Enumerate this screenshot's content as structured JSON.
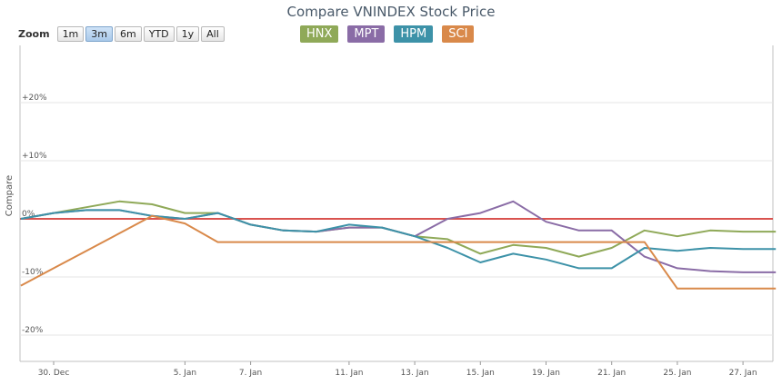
{
  "chart_data": {
    "type": "line",
    "title": "Compare VNINDEX Stock Price",
    "ylabel": "Compare",
    "ylim": [
      -25,
      30
    ],
    "y_ticks": [
      {
        "value": 20,
        "label": "+20%"
      },
      {
        "value": 10,
        "label": "+10%"
      },
      {
        "value": 0,
        "label": "0%"
      },
      {
        "value": -10,
        "label": "-10%"
      },
      {
        "value": -20,
        "label": "-20%"
      }
    ],
    "x_ticks": [
      {
        "idx": 0,
        "label": "30. Dec"
      },
      {
        "idx": 4,
        "label": "5. Jan"
      },
      {
        "idx": 6,
        "label": "7. Jan"
      },
      {
        "idx": 9,
        "label": "11. Jan"
      },
      {
        "idx": 11,
        "label": "13. Jan"
      },
      {
        "idx": 13,
        "label": "15. Jan"
      },
      {
        "idx": 15,
        "label": "19. Jan"
      },
      {
        "idx": 17,
        "label": "21. Jan"
      },
      {
        "idx": 19,
        "label": "25. Jan"
      },
      {
        "idx": 21,
        "label": "27. Jan"
      }
    ],
    "baseline": {
      "value": 0,
      "color": "#d9534f"
    },
    "series": [
      {
        "name": "HNX",
        "color": "#8fa958",
        "points": [
          [
            -1,
            0
          ],
          [
            0,
            1
          ],
          [
            1,
            2
          ],
          [
            2,
            3
          ],
          [
            3,
            2.5
          ],
          [
            4,
            1
          ],
          [
            5,
            1
          ],
          [
            6,
            -1
          ],
          [
            7,
            -2
          ],
          [
            8,
            -2.2
          ],
          [
            9,
            -1.5
          ],
          [
            10,
            -1.5
          ],
          [
            11,
            -3
          ],
          [
            12,
            -3.5
          ],
          [
            13,
            -6
          ],
          [
            14,
            -4.5
          ],
          [
            15,
            -5
          ],
          [
            16,
            -6.5
          ],
          [
            17,
            -5
          ],
          [
            18,
            -2
          ],
          [
            19,
            -3
          ],
          [
            20,
            -2
          ],
          [
            21,
            -2.2
          ],
          [
            22,
            -2.2
          ]
        ]
      },
      {
        "name": "MPT",
        "color": "#8a6ca6",
        "points": [
          [
            -1,
            0
          ],
          [
            0,
            1
          ],
          [
            1,
            1.5
          ],
          [
            2,
            1.5
          ],
          [
            3,
            0.5
          ],
          [
            4,
            0
          ],
          [
            5,
            1
          ],
          [
            6,
            -1
          ],
          [
            7,
            -2
          ],
          [
            8,
            -2.2
          ],
          [
            9,
            -1.5
          ],
          [
            10,
            -1.5
          ],
          [
            11,
            -3
          ],
          [
            12,
            0
          ],
          [
            13,
            1
          ],
          [
            14,
            3
          ],
          [
            15,
            -0.5
          ],
          [
            16,
            -2
          ],
          [
            17,
            -2
          ],
          [
            18,
            -6.5
          ],
          [
            19,
            -8.5
          ],
          [
            20,
            -9
          ],
          [
            21,
            -9.2
          ],
          [
            22,
            -9.2
          ]
        ]
      },
      {
        "name": "HPM",
        "color": "#3d92a8",
        "points": [
          [
            -1,
            0
          ],
          [
            0,
            1
          ],
          [
            1,
            1.5
          ],
          [
            2,
            1.5
          ],
          [
            3,
            0.5
          ],
          [
            4,
            0
          ],
          [
            5,
            1
          ],
          [
            6,
            -1
          ],
          [
            7,
            -2
          ],
          [
            8,
            -2.2
          ],
          [
            9,
            -1
          ],
          [
            10,
            -1.5
          ],
          [
            11,
            -3
          ],
          [
            12,
            -5
          ],
          [
            13,
            -7.5
          ],
          [
            14,
            -6
          ],
          [
            15,
            -7
          ],
          [
            16,
            -8.5
          ],
          [
            17,
            -8.5
          ],
          [
            18,
            -5
          ],
          [
            19,
            -5.5
          ],
          [
            20,
            -5
          ],
          [
            21,
            -5.2
          ],
          [
            22,
            -5.2
          ]
        ]
      },
      {
        "name": "SCI",
        "color": "#d9894a",
        "points": [
          [
            -1,
            -11.5
          ],
          [
            0,
            -8.5
          ],
          [
            1,
            -5.5
          ],
          [
            2,
            -2.5
          ],
          [
            3,
            0.5
          ],
          [
            4,
            -0.8
          ],
          [
            5,
            -4
          ],
          [
            6,
            -4
          ],
          [
            7,
            -4
          ],
          [
            8,
            -4
          ],
          [
            9,
            -4
          ],
          [
            10,
            -4
          ],
          [
            11,
            -4
          ],
          [
            12,
            -4
          ],
          [
            13,
            -4
          ],
          [
            14,
            -4
          ],
          [
            15,
            -4
          ],
          [
            16,
            -4
          ],
          [
            17,
            -4
          ],
          [
            18,
            -4
          ],
          [
            19,
            -12
          ],
          [
            20,
            -12
          ],
          [
            21,
            -12
          ],
          [
            22,
            -12
          ]
        ]
      }
    ]
  },
  "zoom": {
    "label": "Zoom",
    "buttons": [
      "1m",
      "3m",
      "6m",
      "YTD",
      "1y",
      "All"
    ],
    "active": "3m"
  }
}
